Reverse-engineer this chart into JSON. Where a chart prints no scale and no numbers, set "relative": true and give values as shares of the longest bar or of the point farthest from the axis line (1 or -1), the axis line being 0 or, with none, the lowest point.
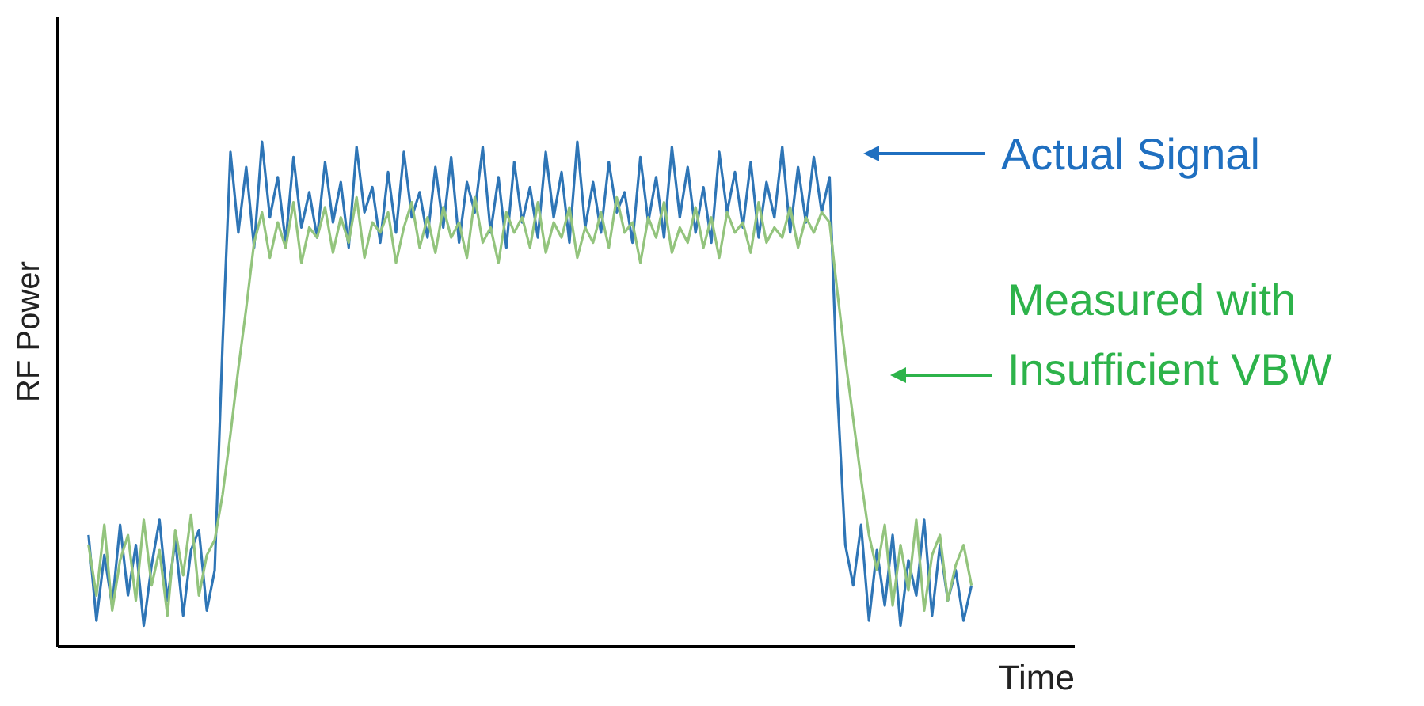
{
  "chart_data": {
    "type": "line",
    "relative": true,
    "xlabel": "Time",
    "ylabel": "RF Power",
    "categories": [
      null,
      null,
      null,
      null,
      null,
      null,
      null,
      null,
      null,
      null,
      null,
      null,
      null,
      null,
      null,
      null,
      null,
      null,
      null,
      null,
      null,
      null,
      null,
      null,
      null,
      null,
      null,
      null,
      null,
      null,
      null,
      null,
      null,
      null,
      null,
      null,
      null,
      null,
      null,
      null,
      null,
      null,
      null,
      null,
      null,
      null,
      null,
      null,
      null,
      null,
      null,
      null,
      null,
      null,
      null,
      null,
      null,
      null,
      null,
      null,
      null,
      null,
      null,
      null,
      null,
      null,
      null,
      null,
      null,
      null,
      null,
      null,
      null,
      null,
      null,
      null,
      null,
      null,
      null,
      null,
      null,
      null,
      null,
      null,
      null,
      null,
      null,
      null,
      null,
      null,
      null,
      null,
      null,
      null,
      null,
      null,
      null,
      null,
      null,
      null,
      null,
      null,
      null,
      null,
      null,
      null,
      null,
      null,
      null,
      null,
      null,
      null,
      null
    ],
    "series": [
      {
        "name": "Actual Signal",
        "color": "#2e75b6",
        "values": [
          0.22,
          0.05,
          0.18,
          0.08,
          0.24,
          0.1,
          0.2,
          0.04,
          0.16,
          0.25,
          0.09,
          0.21,
          0.06,
          0.19,
          0.23,
          0.07,
          0.15,
          0.6,
          0.98,
          0.82,
          0.95,
          0.79,
          1.0,
          0.85,
          0.93,
          0.8,
          0.97,
          0.83,
          0.9,
          0.81,
          0.96,
          0.84,
          0.92,
          0.79,
          0.99,
          0.86,
          0.91,
          0.8,
          0.94,
          0.82,
          0.98,
          0.85,
          0.9,
          0.81,
          0.95,
          0.83,
          0.97,
          0.8,
          0.92,
          0.86,
          0.99,
          0.82,
          0.93,
          0.79,
          0.96,
          0.84,
          0.91,
          0.81,
          0.98,
          0.85,
          0.94,
          0.8,
          1.0,
          0.83,
          0.92,
          0.82,
          0.96,
          0.86,
          0.9,
          0.8,
          0.97,
          0.84,
          0.93,
          0.81,
          0.99,
          0.85,
          0.95,
          0.82,
          0.91,
          0.8,
          0.98,
          0.86,
          0.94,
          0.83,
          0.96,
          0.81,
          0.92,
          0.85,
          0.99,
          0.82,
          0.95,
          0.84,
          0.97,
          0.86,
          0.93,
          0.5,
          0.2,
          0.12,
          0.24,
          0.05,
          0.19,
          0.08,
          0.22,
          0.04,
          0.17,
          0.1,
          0.25,
          0.06,
          0.2,
          0.09,
          0.15,
          0.05,
          0.12
        ]
      },
      {
        "name": "Measured with Insufficient VBW",
        "color": "#93c47d",
        "values": [
          0.2,
          0.1,
          0.24,
          0.07,
          0.17,
          0.22,
          0.09,
          0.25,
          0.12,
          0.19,
          0.06,
          0.23,
          0.14,
          0.26,
          0.1,
          0.18,
          0.21,
          0.3,
          0.42,
          0.55,
          0.67,
          0.8,
          0.86,
          0.77,
          0.84,
          0.79,
          0.88,
          0.76,
          0.83,
          0.81,
          0.87,
          0.78,
          0.85,
          0.8,
          0.89,
          0.77,
          0.84,
          0.82,
          0.86,
          0.76,
          0.83,
          0.88,
          0.79,
          0.85,
          0.78,
          0.87,
          0.81,
          0.84,
          0.77,
          0.89,
          0.8,
          0.83,
          0.76,
          0.86,
          0.82,
          0.85,
          0.79,
          0.88,
          0.78,
          0.84,
          0.81,
          0.87,
          0.77,
          0.83,
          0.8,
          0.86,
          0.79,
          0.89,
          0.82,
          0.84,
          0.76,
          0.85,
          0.81,
          0.88,
          0.78,
          0.83,
          0.8,
          0.87,
          0.79,
          0.85,
          0.77,
          0.86,
          0.82,
          0.84,
          0.78,
          0.88,
          0.8,
          0.83,
          0.81,
          0.87,
          0.79,
          0.85,
          0.82,
          0.86,
          0.84,
          0.7,
          0.57,
          0.45,
          0.33,
          0.22,
          0.15,
          0.24,
          0.08,
          0.2,
          0.11,
          0.25,
          0.07,
          0.18,
          0.22,
          0.09,
          0.16,
          0.2,
          0.12
        ]
      }
    ]
  }
}
